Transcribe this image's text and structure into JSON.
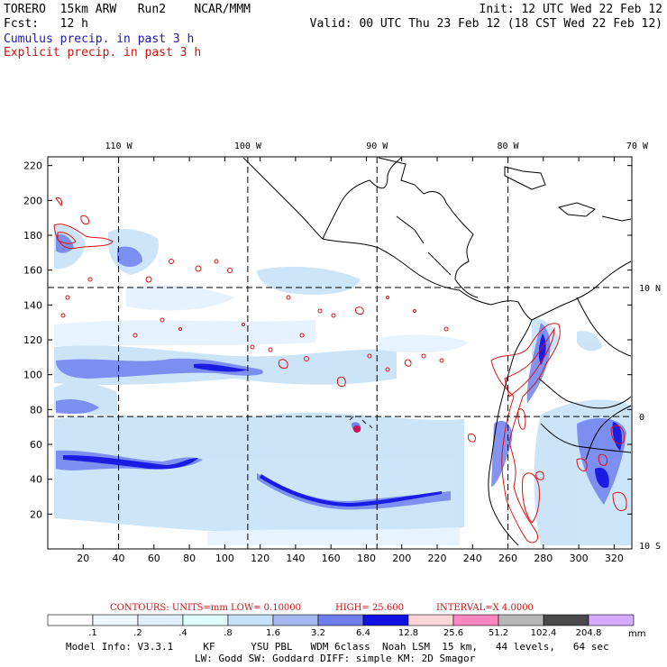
{
  "header": {
    "model": "TORERO",
    "resolution": "15km ARW",
    "run": "Run2",
    "source": "NCAR/MMM",
    "init": "Init: 12 UTC Wed 22 Feb 12",
    "fcst_label": "Fcst:",
    "fcst_value": "12 h",
    "valid": "Valid: 00 UTC Thu 23 Feb 12 (18 CST Wed 22 Feb 12)"
  },
  "fields": {
    "cumulus": "Cumulus precip. in past 3 h",
    "explicit": "Explicit precip. in past 3 h"
  },
  "colors": {
    "cumulus_text": "#1a1ab0",
    "explicit_text": "#d01010",
    "contour": "#dd1111",
    "coast": "#000000"
  },
  "contour_info": {
    "units": "CONTOURS:  UNITS=mm  LOW= 0.10000",
    "high": "HIGH=  25.600",
    "interval": "INTERVAL=X  4.0000"
  },
  "colorbar": {
    "levels": [
      ".1",
      ".2",
      ".4",
      ".8",
      "1.6",
      "3.2",
      "6.4",
      "12.8",
      "25.6",
      "51.2",
      "102.4",
      "204.8"
    ],
    "colors": [
      "#ffffff",
      "#eef6ff",
      "#e0f0ff",
      "#e0ffff",
      "#c6e2f8",
      "#a6b8f0",
      "#6f80ee",
      "#1010e0",
      "#ffd6d6",
      "#ff88c0",
      "#b8b8b8",
      "#4a4a4a",
      "#d8aaff"
    ],
    "unit": "mm"
  },
  "footer": {
    "line1": "Model Info: V3.3.1     KF      YSU PBL   WDM 6class  Noah LSM  15 km,   44 levels,   64 sec",
    "line2": "LW: Godd SW: Goddard DIFF: simple KM: 2D Smagor"
  },
  "chart_data": {
    "type": "heatmap",
    "title": "Cumulus precip. in past 3 h / Explicit precip. in past 3 h",
    "x_grid_ticks": [
      20,
      40,
      60,
      80,
      100,
      120,
      140,
      160,
      180,
      200,
      220,
      240,
      260,
      280,
      300,
      320
    ],
    "y_grid_ticks": [
      20,
      40,
      60,
      80,
      100,
      120,
      140,
      160,
      180,
      200,
      220
    ],
    "xlim": [
      0,
      330
    ],
    "ylim": [
      0,
      225
    ],
    "lon_labels": [
      {
        "label": "110 W",
        "x": 40
      },
      {
        "label": "100 W",
        "x": 113
      },
      {
        "label": "90 W",
        "x": 186
      },
      {
        "label": "80 W",
        "x": 260
      },
      {
        "label": "70 W",
        "x": 333
      }
    ],
    "lat_labels": [
      {
        "label": "10 N",
        "y": 150
      },
      {
        "label": "0",
        "y": 76
      },
      {
        "label": "10 S",
        "y": 2
      }
    ],
    "meridian_grid_x": [
      40,
      113,
      186,
      260
    ],
    "parallel_grid_y": [
      150,
      76
    ]
  }
}
